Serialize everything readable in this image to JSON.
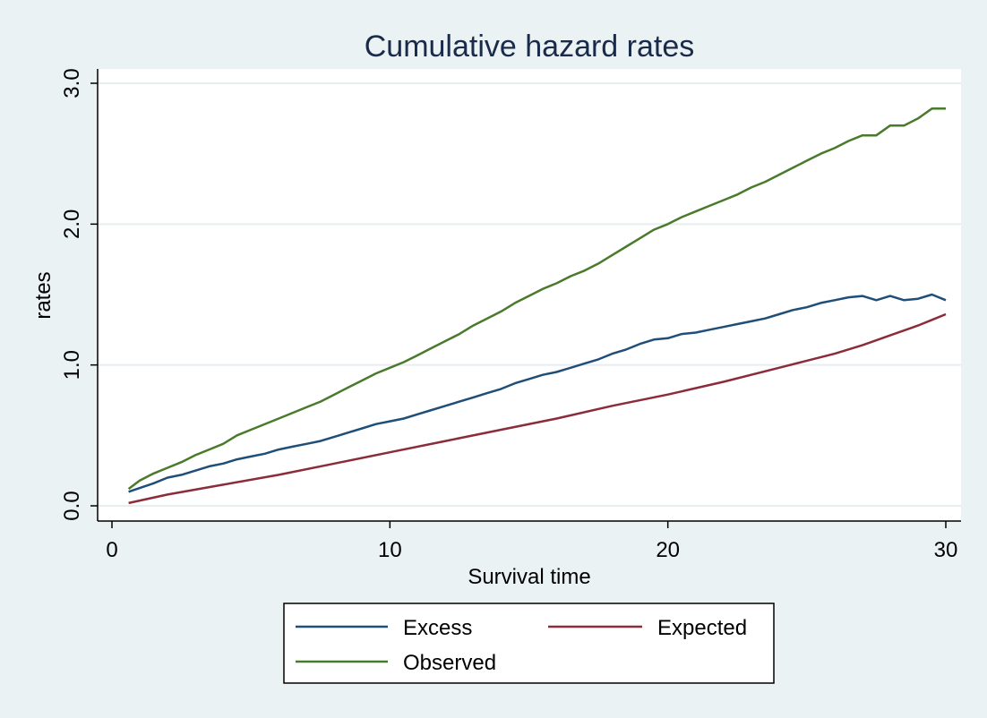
{
  "chart_data": {
    "type": "line",
    "title": "Cumulative hazard rates",
    "xlabel": "Survival time",
    "ylabel": "rates",
    "xlim": [
      0,
      30
    ],
    "ylim": [
      0,
      3
    ],
    "xticks": [
      0,
      10,
      20,
      30
    ],
    "xtick_labels": [
      "0",
      "10",
      "20",
      "30"
    ],
    "yticks": [
      0,
      1,
      2,
      3
    ],
    "ytick_labels": [
      "0.0",
      "1.0",
      "2.0",
      "3.0"
    ],
    "grid": "horizontal",
    "legend_position": "bottom",
    "series": [
      {
        "name": "Excess",
        "color": "#1f4e79",
        "x": [
          0.6,
          1.5,
          2,
          2.5,
          3,
          3.5,
          4,
          4.5,
          5,
          5.5,
          6,
          6.5,
          7,
          7.5,
          8,
          8.5,
          9,
          9.5,
          10,
          10.5,
          11,
          11.5,
          12,
          12.5,
          13,
          13.5,
          14,
          14.5,
          15,
          15.5,
          16,
          16.5,
          17,
          17.5,
          18,
          18.5,
          19,
          19.5,
          20,
          20.5,
          21,
          21.5,
          22,
          22.5,
          23,
          23.5,
          24,
          24.5,
          25,
          25.5,
          26,
          26.5,
          27,
          27.5,
          28,
          28.5,
          29,
          29.5,
          30
        ],
        "y": [
          0.1,
          0.16,
          0.2,
          0.22,
          0.25,
          0.28,
          0.3,
          0.33,
          0.35,
          0.37,
          0.4,
          0.42,
          0.44,
          0.46,
          0.49,
          0.52,
          0.55,
          0.58,
          0.6,
          0.62,
          0.65,
          0.68,
          0.71,
          0.74,
          0.77,
          0.8,
          0.83,
          0.87,
          0.9,
          0.93,
          0.95,
          0.98,
          1.01,
          1.04,
          1.08,
          1.11,
          1.15,
          1.18,
          1.19,
          1.22,
          1.23,
          1.25,
          1.27,
          1.29,
          1.31,
          1.33,
          1.36,
          1.39,
          1.41,
          1.44,
          1.46,
          1.48,
          1.49,
          1.46,
          1.49,
          1.46,
          1.47,
          1.5,
          1.46
        ]
      },
      {
        "name": "Expected",
        "color": "#8b2c3a",
        "x": [
          0.6,
          2,
          4,
          6,
          8,
          10,
          12,
          14,
          16,
          18,
          20,
          22,
          24,
          25,
          26,
          27,
          28,
          29,
          29.5,
          30
        ],
        "y": [
          0.02,
          0.08,
          0.15,
          0.22,
          0.3,
          0.38,
          0.46,
          0.54,
          0.62,
          0.71,
          0.79,
          0.88,
          0.98,
          1.03,
          1.08,
          1.14,
          1.21,
          1.28,
          1.32,
          1.36
        ]
      },
      {
        "name": "Observed",
        "color": "#4a7a2c",
        "x": [
          0.6,
          1,
          1.5,
          2,
          2.5,
          3,
          3.5,
          4,
          4.5,
          5,
          6,
          7,
          7.5,
          8,
          8.5,
          9,
          9.5,
          10,
          10.5,
          11,
          11.5,
          12,
          12.5,
          13,
          13.5,
          14,
          14.5,
          15,
          15.5,
          16,
          16.5,
          17,
          17.5,
          18,
          18.5,
          19,
          19.5,
          20,
          20.5,
          21,
          21.5,
          22,
          22.5,
          23,
          23.5,
          24,
          24.5,
          25,
          25.5,
          26,
          26.5,
          27,
          27.5,
          28,
          28.5,
          29,
          29.5,
          30
        ],
        "y": [
          0.12,
          0.18,
          0.23,
          0.27,
          0.31,
          0.36,
          0.4,
          0.44,
          0.5,
          0.54,
          0.62,
          0.7,
          0.74,
          0.79,
          0.84,
          0.89,
          0.94,
          0.98,
          1.02,
          1.07,
          1.12,
          1.17,
          1.22,
          1.28,
          1.33,
          1.38,
          1.44,
          1.49,
          1.54,
          1.58,
          1.63,
          1.67,
          1.72,
          1.78,
          1.84,
          1.9,
          1.96,
          2.0,
          2.05,
          2.09,
          2.13,
          2.17,
          2.21,
          2.26,
          2.3,
          2.35,
          2.4,
          2.45,
          2.5,
          2.54,
          2.59,
          2.63,
          2.63,
          2.7,
          2.7,
          2.75,
          2.82,
          2.82
        ]
      }
    ]
  }
}
